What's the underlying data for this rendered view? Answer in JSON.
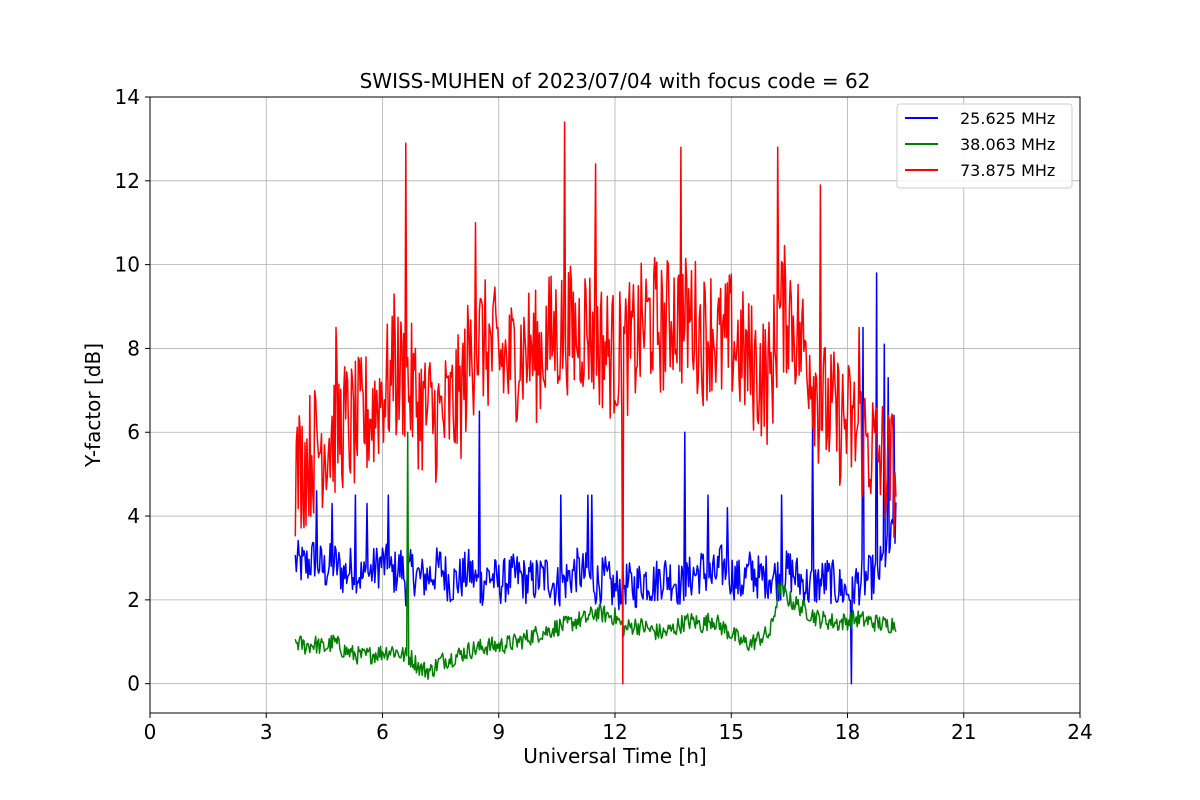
{
  "chart_data": {
    "type": "line",
    "title": "SWISS-MUHEN of 2023/07/04 with focus code = 62",
    "xlabel": "Universal Time [h]",
    "ylabel": "Y-factor [dB]",
    "xlim": [
      0,
      24
    ],
    "ylim": [
      -0.7,
      14
    ],
    "xticks": [
      0,
      3,
      6,
      9,
      12,
      15,
      18,
      21,
      24
    ],
    "yticks": [
      0,
      2,
      4,
      6,
      8,
      10,
      12,
      14
    ],
    "grid": true,
    "legend_position": "top-right",
    "series": [
      {
        "name": "25.625 MHz",
        "color": "#0000ff",
        "x": [
          3.75,
          4.0,
          4.25,
          4.5,
          4.75,
          5.0,
          5.25,
          5.5,
          5.75,
          6.0,
          6.25,
          6.5,
          6.6,
          6.75,
          7.0,
          7.25,
          7.5,
          7.75,
          8.0,
          8.25,
          8.5,
          8.75,
          9.0,
          9.25,
          9.5,
          9.75,
          10.0,
          10.25,
          10.5,
          10.75,
          11.0,
          11.25,
          11.5,
          11.75,
          12.0,
          12.25,
          12.5,
          12.75,
          13.0,
          13.25,
          13.5,
          13.75,
          14.0,
          14.25,
          14.5,
          14.75,
          15.0,
          15.25,
          15.5,
          15.75,
          16.0,
          16.25,
          16.5,
          16.75,
          17.0,
          17.25,
          17.5,
          17.75,
          18.0,
          18.25,
          18.5,
          18.75,
          19.0,
          19.25
        ],
        "y": [
          2.9,
          2.8,
          3.0,
          2.7,
          2.9,
          2.6,
          2.8,
          2.5,
          2.7,
          2.9,
          2.6,
          2.8,
          2.4,
          2.7,
          2.5,
          2.6,
          2.8,
          2.4,
          2.5,
          2.7,
          2.3,
          2.6,
          2.4,
          2.5,
          2.6,
          2.4,
          2.5,
          2.6,
          2.3,
          2.5,
          2.7,
          2.6,
          2.4,
          2.5,
          2.2,
          2.4,
          2.3,
          2.5,
          2.4,
          2.6,
          2.5,
          2.3,
          2.6,
          2.7,
          2.5,
          2.8,
          2.6,
          2.4,
          2.7,
          2.5,
          2.6,
          2.5,
          2.7,
          2.5,
          2.3,
          2.4,
          2.5,
          2.3,
          2.2,
          2.4,
          2.5,
          2.6,
          3.0,
          3.8
        ],
        "spikes": [
          [
            4.3,
            4.6
          ],
          [
            4.7,
            4.3
          ],
          [
            5.3,
            4.5
          ],
          [
            5.6,
            4.3
          ],
          [
            6.15,
            4.5
          ],
          [
            8.5,
            6.5
          ],
          [
            10.6,
            4.5
          ],
          [
            11.3,
            4.5
          ],
          [
            11.4,
            4.5
          ],
          [
            13.8,
            6.0
          ],
          [
            14.4,
            4.5
          ],
          [
            14.9,
            4.2
          ],
          [
            16.3,
            4.5
          ],
          [
            17.1,
            6.2
          ],
          [
            18.1,
            0.0
          ],
          [
            18.4,
            8.5
          ],
          [
            18.75,
            9.8
          ],
          [
            18.95,
            8.1
          ],
          [
            19.05,
            7.3
          ],
          [
            19.2,
            6.4
          ]
        ]
      },
      {
        "name": "38.063 MHz",
        "color": "#008000",
        "x": [
          3.75,
          4.0,
          4.25,
          4.5,
          4.75,
          5.0,
          5.25,
          5.5,
          5.75,
          6.0,
          6.25,
          6.5,
          6.75,
          7.0,
          7.25,
          7.5,
          7.75,
          8.0,
          8.25,
          8.5,
          8.75,
          9.0,
          9.25,
          9.5,
          9.75,
          10.0,
          10.25,
          10.5,
          10.75,
          11.0,
          11.25,
          11.5,
          11.75,
          12.0,
          12.25,
          12.5,
          12.75,
          13.0,
          13.25,
          13.5,
          13.75,
          14.0,
          14.25,
          14.5,
          14.75,
          15.0,
          15.25,
          15.5,
          15.75,
          16.0,
          16.25,
          16.5,
          16.75,
          17.0,
          17.25,
          17.5,
          17.75,
          18.0,
          18.25,
          18.5,
          18.75,
          19.0,
          19.25
        ],
        "y": [
          1.0,
          0.9,
          0.95,
          0.85,
          1.0,
          0.8,
          0.7,
          0.65,
          0.7,
          0.75,
          0.8,
          0.7,
          0.6,
          0.35,
          0.3,
          0.55,
          0.6,
          0.7,
          0.8,
          0.85,
          0.9,
          0.9,
          0.95,
          1.0,
          1.1,
          1.2,
          1.25,
          1.35,
          1.4,
          1.5,
          1.55,
          1.7,
          1.65,
          1.6,
          1.3,
          1.4,
          1.35,
          1.25,
          1.2,
          1.3,
          1.45,
          1.5,
          1.4,
          1.55,
          1.35,
          1.2,
          1.0,
          0.95,
          1.1,
          1.2,
          2.3,
          2.0,
          1.85,
          1.7,
          1.55,
          1.5,
          1.45,
          1.5,
          1.55,
          1.5,
          1.45,
          1.4,
          1.45
        ],
        "spikes": [
          [
            6.65,
            6.0
          ]
        ]
      },
      {
        "name": "73.875 MHz",
        "color": "#ff0000",
        "x": [
          3.75,
          4.0,
          4.25,
          4.5,
          4.75,
          5.0,
          5.25,
          5.5,
          5.75,
          6.0,
          6.25,
          6.5,
          6.75,
          7.0,
          7.25,
          7.5,
          7.75,
          8.0,
          8.25,
          8.5,
          8.75,
          9.0,
          9.25,
          9.5,
          9.75,
          10.0,
          10.25,
          10.5,
          10.75,
          11.0,
          11.25,
          11.5,
          11.75,
          12.0,
          12.25,
          12.5,
          12.75,
          13.0,
          13.25,
          13.5,
          13.75,
          14.0,
          14.25,
          14.5,
          14.75,
          15.0,
          15.25,
          15.5,
          15.75,
          16.0,
          16.25,
          16.5,
          16.75,
          17.0,
          17.25,
          17.5,
          17.75,
          18.0,
          18.25,
          18.5,
          18.75,
          19.0,
          19.25
        ],
        "y": [
          5.0,
          5.3,
          5.6,
          5.8,
          6.0,
          6.2,
          6.1,
          6.3,
          6.5,
          7.0,
          7.2,
          7.4,
          7.0,
          6.6,
          6.4,
          6.3,
          6.5,
          6.8,
          7.8,
          8.2,
          8.0,
          7.8,
          7.6,
          7.9,
          8.0,
          7.8,
          8.2,
          8.4,
          8.5,
          8.3,
          8.6,
          8.2,
          8.0,
          7.8,
          7.9,
          8.1,
          8.6,
          8.7,
          8.4,
          8.9,
          8.6,
          8.8,
          8.2,
          8.5,
          8.0,
          8.3,
          7.9,
          7.6,
          7.4,
          7.2,
          8.8,
          9.0,
          8.2,
          7.9,
          6.8,
          6.5,
          6.3,
          6.2,
          6.0,
          5.8,
          5.5,
          5.2,
          5.0
        ],
        "spikes": [
          [
            4.8,
            8.5
          ],
          [
            6.3,
            9.3
          ],
          [
            6.6,
            12.9
          ],
          [
            8.4,
            11.0
          ],
          [
            10.7,
            13.4
          ],
          [
            11.5,
            12.4
          ],
          [
            12.2,
            0.0
          ],
          [
            13.7,
            12.8
          ],
          [
            16.2,
            12.8
          ],
          [
            17.3,
            11.9
          ],
          [
            18.3,
            8.5
          ]
        ]
      }
    ]
  }
}
